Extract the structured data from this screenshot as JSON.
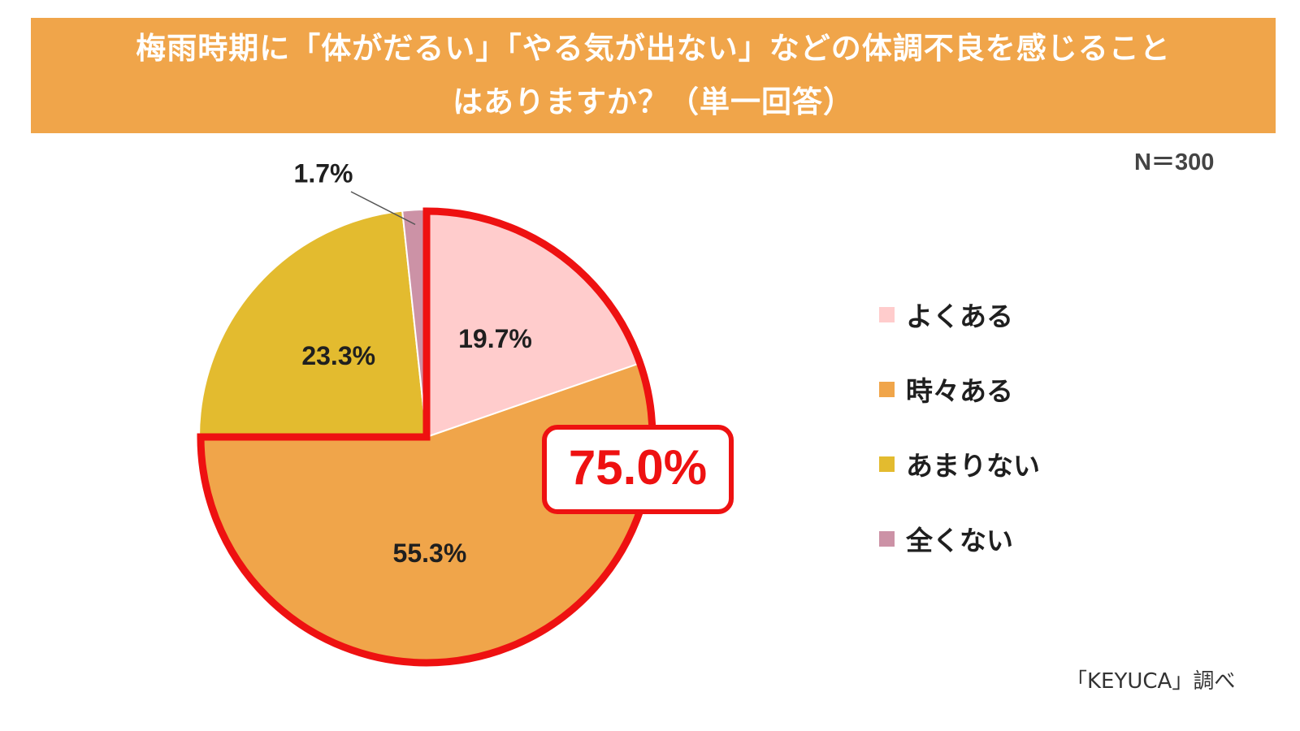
{
  "header": {
    "title_line1": "梅雨時期に「体がだるい」「やる気が出ない」などの体調不良を感じること",
    "title_line2": "はありますか？（単一回答）",
    "background_color": "#F0A54A"
  },
  "sample_size": "N＝300",
  "source_note": "「KEYUCA」調べ",
  "chart_data": {
    "type": "pie",
    "title": "梅雨時期に「体がだるい」「やる気が出ない」などの体調不良を感じることはありますか？（単一回答）",
    "start_angle": "12 o'clock",
    "direction": "clockwise",
    "slices": [
      {
        "label": "よくある",
        "value": 19.7,
        "value_label": "19.7%",
        "color": "#FFCCCC"
      },
      {
        "label": "時々ある",
        "value": 55.3,
        "value_label": "55.3%",
        "color": "#F0A54A"
      },
      {
        "label": "あまりない",
        "value": 23.3,
        "value_label": "23.3%",
        "color": "#E3BB2F"
      },
      {
        "label": "全くない",
        "value": 1.7,
        "value_label": "1.7%",
        "color": "#CC92A6"
      }
    ],
    "highlight": {
      "value": 75.0,
      "label": "75.0%",
      "covers": [
        "よくある",
        "時々ある"
      ],
      "color": "#EE1111"
    },
    "legend_position": "right"
  }
}
